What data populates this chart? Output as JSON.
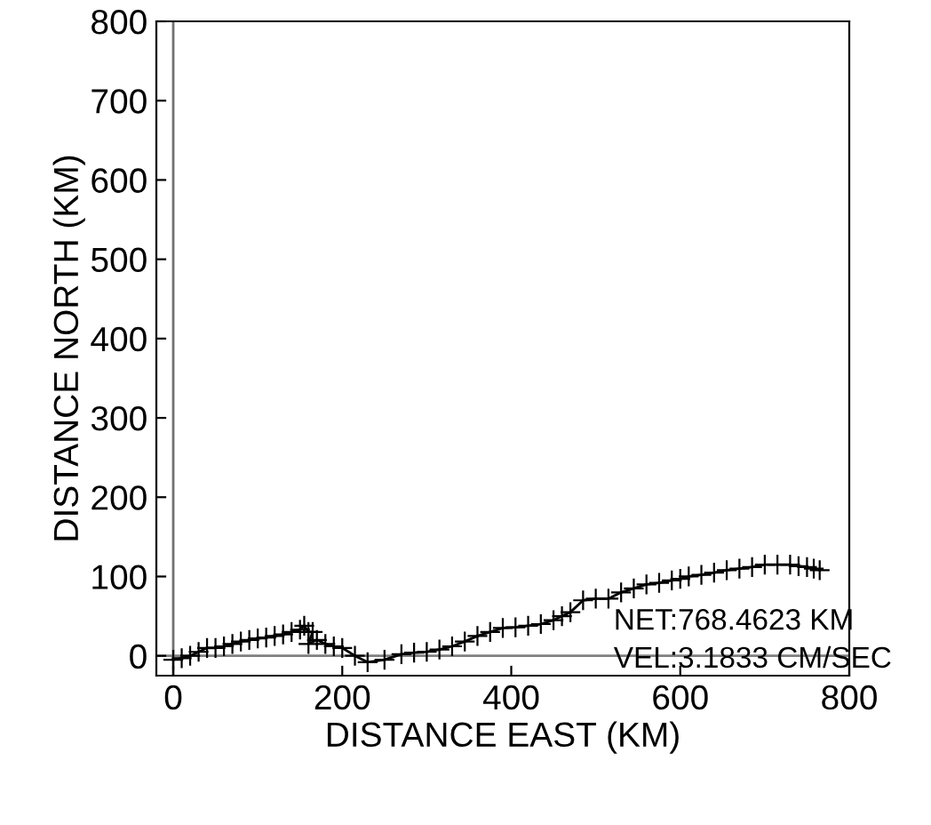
{
  "chart_data": {
    "type": "line",
    "xlabel": "DISTANCE EAST (KM)",
    "ylabel": "DISTANCE NORTH (KM)",
    "x": [
      0,
      10,
      20,
      30,
      40,
      50,
      60,
      70,
      80,
      90,
      100,
      110,
      120,
      130,
      140,
      150,
      155,
      160,
      165,
      160,
      170,
      180,
      190,
      200,
      215,
      230,
      250,
      270,
      285,
      300,
      315,
      330,
      345,
      360,
      375,
      390,
      405,
      420,
      435,
      450,
      460,
      470,
      485,
      500,
      515,
      530,
      545,
      560,
      575,
      590,
      600,
      610,
      625,
      640,
      655,
      670,
      685,
      700,
      715,
      730,
      740,
      750,
      758,
      765
    ],
    "series": [
      {
        "color": "#000000",
        "values": [
          -5,
          -3,
          0,
          5,
          10,
          10,
          12,
          15,
          18,
          20,
          22,
          23,
          25,
          27,
          30,
          33,
          38,
          30,
          30,
          15,
          20,
          15,
          12,
          10,
          0,
          -8,
          -5,
          2,
          4,
          5,
          8,
          12,
          18,
          25,
          30,
          35,
          36,
          38,
          40,
          45,
          50,
          55,
          70,
          72,
          72,
          80,
          85,
          90,
          92,
          95,
          97,
          100,
          102,
          105,
          108,
          110,
          112,
          115,
          115,
          115,
          113,
          112,
          110,
          108
        ]
      }
    ],
    "xlim": [
      -20,
      800
    ],
    "ylim": [
      -25,
      800
    ],
    "xticks": [
      0,
      200,
      400,
      600,
      800
    ],
    "yticks": [
      0,
      100,
      200,
      300,
      400,
      500,
      600,
      700,
      800
    ],
    "ref_lines": [
      {
        "axis": "x",
        "value": 0,
        "color": "#707070"
      },
      {
        "axis": "y",
        "value": 0,
        "color": "#808080"
      }
    ],
    "annotations": [
      "NET:768.4623 KM",
      "VEL:3.1833 CM/SEC"
    ],
    "marker": "cross",
    "grid": false,
    "legend": false
  }
}
